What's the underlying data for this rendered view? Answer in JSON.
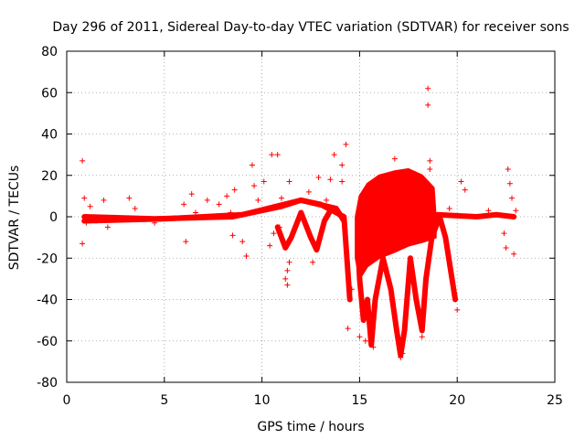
{
  "chart_data": {
    "type": "scatter",
    "title": "Day 296 of 2011, Sidereal Day-to-day VTEC variation (SDTVAR) for receiver sons",
    "xlabel": "GPS time / hours",
    "ylabel": "SDTVAR / TECUs",
    "xlim": [
      0,
      25
    ],
    "ylim": [
      -80,
      80
    ],
    "x_ticks": [
      "0",
      "5",
      "10",
      "15",
      "20",
      "25"
    ],
    "y_ticks": [
      "80",
      "60",
      "40",
      "20",
      "0",
      "-20",
      "-40",
      "-60",
      "-80"
    ],
    "grid": true,
    "marker": "plus",
    "color": "#ff0000",
    "series": [
      {
        "name": "SDTVAR",
        "points": [
          [
            0.8,
            27
          ],
          [
            0.8,
            -13
          ],
          [
            0.9,
            9
          ],
          [
            1.0,
            -3
          ],
          [
            1.2,
            5
          ],
          [
            1.5,
            -2
          ],
          [
            1.9,
            8
          ],
          [
            2.1,
            -5
          ],
          [
            3.2,
            9
          ],
          [
            3.5,
            4
          ],
          [
            4.5,
            -3
          ],
          [
            6.0,
            6
          ],
          [
            6.1,
            -12
          ],
          [
            6.4,
            11
          ],
          [
            6.6,
            2
          ],
          [
            7.2,
            8
          ],
          [
            7.8,
            6
          ],
          [
            8.2,
            10
          ],
          [
            8.4,
            2
          ],
          [
            8.5,
            -9
          ],
          [
            8.6,
            13
          ],
          [
            9.0,
            -12
          ],
          [
            9.2,
            -19
          ],
          [
            9.5,
            25
          ],
          [
            9.6,
            15
          ],
          [
            9.8,
            8
          ],
          [
            10.1,
            17
          ],
          [
            10.3,
            4
          ],
          [
            10.4,
            -14
          ],
          [
            10.5,
            30
          ],
          [
            10.6,
            -8
          ],
          [
            10.8,
            30
          ],
          [
            10.9,
            -5
          ],
          [
            11.0,
            9
          ],
          [
            11.4,
            17
          ],
          [
            11.2,
            -30
          ],
          [
            11.3,
            -33
          ],
          [
            11.3,
            -26
          ],
          [
            11.4,
            -22
          ],
          [
            12.4,
            12
          ],
          [
            12.6,
            -22
          ],
          [
            12.9,
            19
          ],
          [
            13.3,
            8
          ],
          [
            13.5,
            18
          ],
          [
            13.7,
            30
          ],
          [
            14.1,
            25
          ],
          [
            14.1,
            17
          ],
          [
            14.3,
            35
          ],
          [
            14.4,
            -54
          ],
          [
            14.6,
            -35
          ],
          [
            15.0,
            -58
          ],
          [
            15.3,
            -60
          ],
          [
            15.5,
            -46
          ],
          [
            15.7,
            -63
          ],
          [
            16.5,
            19
          ],
          [
            16.8,
            28
          ],
          [
            17.1,
            -68
          ],
          [
            17.2,
            -66
          ],
          [
            17.9,
            -40
          ],
          [
            18.2,
            -58
          ],
          [
            18.5,
            62
          ],
          [
            18.5,
            54
          ],
          [
            18.6,
            27
          ],
          [
            18.6,
            23
          ],
          [
            19.6,
            4
          ],
          [
            19.9,
            -40
          ],
          [
            20.0,
            -45
          ],
          [
            20.2,
            17
          ],
          [
            20.4,
            13
          ],
          [
            21.6,
            3
          ],
          [
            22.4,
            -8
          ],
          [
            22.5,
            -15
          ],
          [
            22.6,
            23
          ],
          [
            22.7,
            16
          ],
          [
            22.8,
            9
          ],
          [
            22.9,
            -18
          ],
          [
            23.0,
            3
          ]
        ],
        "segments": [
          [
            [
              0.9,
              0
            ],
            [
              4.5,
              -1
            ],
            [
              8.5,
              0
            ],
            [
              11.0,
              5
            ],
            [
              12.0,
              8
            ],
            [
              13.0,
              6
            ],
            [
              14.2,
              0
            ],
            [
              14.5,
              -40
            ]
          ],
          [
            [
              0.9,
              -2
            ],
            [
              5.0,
              -1
            ],
            [
              9.0,
              1
            ],
            [
              12.0,
              8
            ],
            [
              13.8,
              4
            ],
            [
              14.2,
              -2
            ]
          ],
          [
            [
              10.8,
              -5
            ],
            [
              11.2,
              -15
            ],
            [
              11.5,
              -10
            ],
            [
              12.0,
              2
            ],
            [
              12.5,
              -10
            ],
            [
              12.8,
              -16
            ],
            [
              13.2,
              -2
            ],
            [
              13.5,
              3
            ]
          ],
          [
            [
              14.9,
              -10
            ],
            [
              15.0,
              -30
            ],
            [
              15.2,
              -50
            ],
            [
              15.4,
              -40
            ],
            [
              15.6,
              -62
            ],
            [
              15.8,
              -40
            ],
            [
              16.2,
              -20
            ],
            [
              16.6,
              -35
            ],
            [
              16.9,
              -55
            ],
            [
              17.1,
              -67
            ],
            [
              17.3,
              -55
            ],
            [
              17.6,
              -20
            ],
            [
              17.9,
              -40
            ],
            [
              18.2,
              -55
            ],
            [
              18.4,
              -30
            ],
            [
              18.7,
              -10
            ],
            [
              19.1,
              0
            ],
            [
              19.4,
              -10
            ],
            [
              19.7,
              -28
            ],
            [
              19.9,
              -40
            ]
          ],
          [
            [
              19.0,
              1
            ],
            [
              21.0,
              0
            ],
            [
              22.0,
              1
            ],
            [
              22.9,
              0
            ]
          ]
        ],
        "filled_region": {
          "x": [
            14.8,
            15.0,
            15.4,
            16.0,
            16.8,
            17.5,
            18.2,
            18.8,
            18.9,
            18.9,
            18.3,
            17.5,
            16.8,
            16.0,
            15.4,
            15.0,
            14.8
          ],
          "y": [
            0,
            10,
            16,
            20,
            22,
            23,
            20,
            14,
            0,
            -10,
            -12,
            -14,
            -17,
            -20,
            -24,
            -30,
            -20
          ]
        }
      }
    ]
  }
}
